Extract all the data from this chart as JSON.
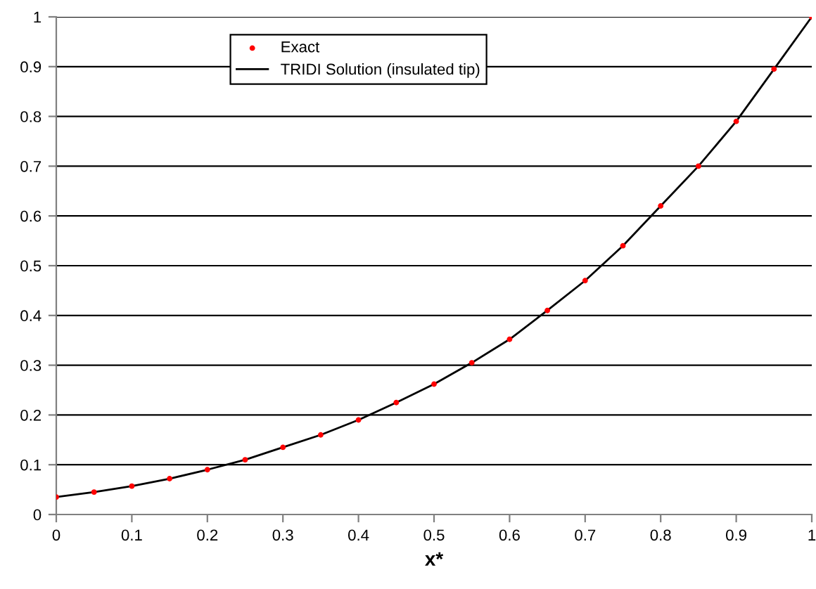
{
  "chart_data": {
    "type": "line",
    "xlabel": "x*",
    "xlim": [
      0,
      1
    ],
    "xticks": [
      0,
      0.1,
      0.2,
      0.3,
      0.4,
      0.5,
      0.6,
      0.7,
      0.8,
      0.9,
      1
    ],
    "ylim": [
      0,
      1
    ],
    "yticks": [
      0,
      0.1,
      0.2,
      0.3,
      0.4,
      0.5,
      0.6,
      0.7,
      0.8,
      0.9,
      1
    ],
    "grid": "y",
    "legend": "top",
    "x": [
      0,
      0.05,
      0.1,
      0.15,
      0.2,
      0.25,
      0.3,
      0.35,
      0.4,
      0.45,
      0.5,
      0.55,
      0.6,
      0.65,
      0.7,
      0.75,
      0.8,
      0.85,
      0.9,
      0.95,
      1
    ],
    "series": [
      {
        "name": "Exact",
        "type": "scatter",
        "color": "#ff0000",
        "marker": "circle",
        "values": [
          0.035,
          0.045,
          0.057,
          0.072,
          0.09,
          0.11,
          0.135,
          0.16,
          0.19,
          0.225,
          0.262,
          0.305,
          0.352,
          0.41,
          0.47,
          0.54,
          0.62,
          0.7,
          0.79,
          0.895,
          1.0
        ]
      },
      {
        "name": "TRIDI Solution (insulated tip)",
        "color": "#000000",
        "line_style": "solid",
        "values": [
          0.035,
          0.045,
          0.057,
          0.072,
          0.09,
          0.11,
          0.135,
          0.16,
          0.19,
          0.225,
          0.262,
          0.305,
          0.352,
          0.41,
          0.47,
          0.54,
          0.62,
          0.7,
          0.79,
          0.895,
          1.0
        ]
      }
    ]
  }
}
